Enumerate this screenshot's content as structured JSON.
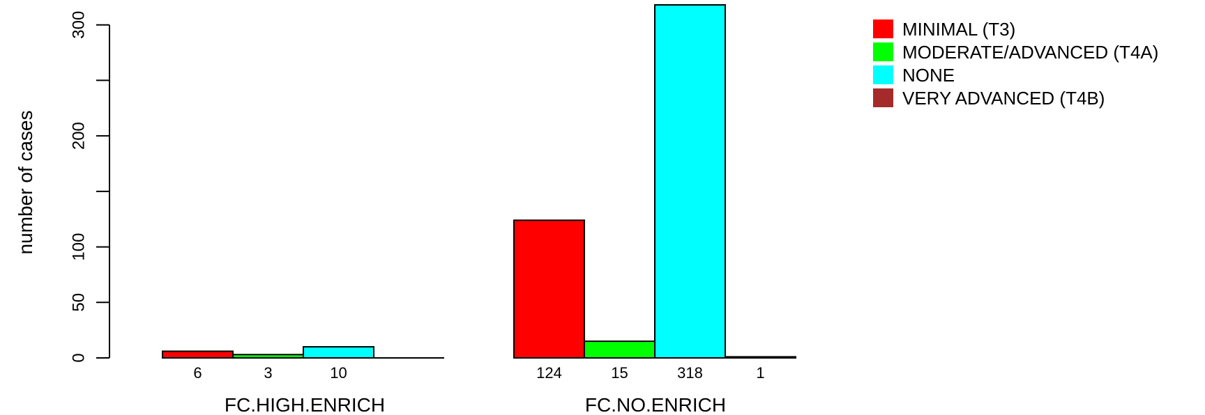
{
  "chart_data": {
    "type": "bar",
    "ylabel": "number of cases",
    "ylim": [
      0,
      318
    ],
    "yticks": [
      0,
      50,
      100,
      200,
      300
    ],
    "groups": [
      {
        "name": "FC.HIGH.ENRICH",
        "bars": [
          {
            "series": "MINIMAL (T3)",
            "value": 6,
            "label": "6"
          },
          {
            "series": "MODERATE/ADVANCED (T4A)",
            "value": 3,
            "label": "3"
          },
          {
            "series": "NONE",
            "value": 10,
            "label": "10"
          },
          {
            "series": "VERY ADVANCED (T4B)",
            "value": 0,
            "label": ""
          }
        ]
      },
      {
        "name": "FC.NO.ENRICH",
        "bars": [
          {
            "series": "MINIMAL (T3)",
            "value": 124,
            "label": "124"
          },
          {
            "series": "MODERATE/ADVANCED (T4A)",
            "value": 15,
            "label": "15"
          },
          {
            "series": "NONE",
            "value": 318,
            "label": "318"
          },
          {
            "series": "VERY ADVANCED (T4B)",
            "value": 1,
            "label": "1"
          }
        ]
      }
    ],
    "legend": {
      "position": "top-right",
      "items": [
        {
          "label": "MINIMAL (T3)",
          "color": "#ff0000"
        },
        {
          "label": "MODERATE/ADVANCED (T4A)",
          "color": "#00ff00"
        },
        {
          "label": "NONE",
          "color": "#00ffff"
        },
        {
          "label": "VERY ADVANCED (T4B)",
          "color": "#a52a2a"
        }
      ]
    },
    "grid": false
  }
}
